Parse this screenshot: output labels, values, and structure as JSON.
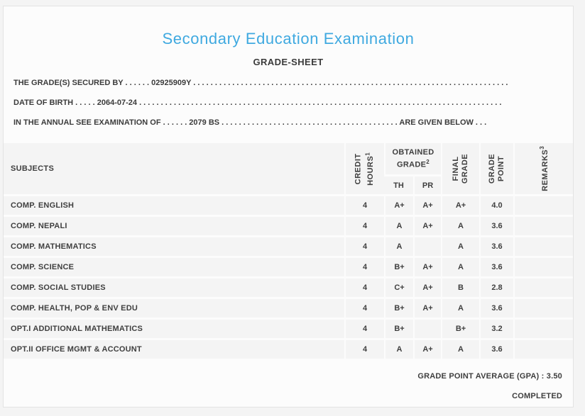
{
  "page": {
    "title": "Secondary Education Examination",
    "subtitle": "GRADE-SHEET"
  },
  "colors": {
    "title_blue": "#3FA9E0",
    "text": "#3B3B3B",
    "cell_bg": "#F4F4F4",
    "card_bg": "#FCFCFC",
    "page_bg": "#F4F4F4"
  },
  "info_lines": [
    "THE GRADE(S) SECURED BY . . . . . . 02925909Y . . . . . . . . . . . . . . . . . . . . . . . . . . . . . . . . . . . . . . . . . . . . . . . . . . . . . . . . . . . . . . . . . . . . . . . . .",
    "DATE OF BIRTH . . . . . 2064-07-24 . . . . . . . . . . . . . . . . . . . . . . . . . . . . . . . . . . . . . . . . . . . . . . . . . . . . . . . . . . . . . . . . . . . . . . . . . . . . . . . . . . . .",
    "IN THE ANNUAL SEE EXAMINATION OF . . . . . . 2079 BS . . . . . . . . . . . . . . . . . . . . . . . . . . . . . . . . . . . . . . . . . ARE GIVEN BELOW . . ."
  ],
  "table": {
    "columns": {
      "subjects": "SUBJECTS",
      "credit_hours": {
        "lines": [
          "CREDIT",
          "HOURS"
        ],
        "sup": "1"
      },
      "obtained_grade": {
        "lines": [
          "OBTAINED",
          "GRADE"
        ],
        "sup": "2"
      },
      "th": "TH",
      "pr": "PR",
      "final_grade": {
        "lines": [
          "FINAL",
          "GRADE"
        ]
      },
      "grade_point": {
        "lines": [
          "GRADE",
          "POINT"
        ]
      },
      "remarks": {
        "text": "REMARKS",
        "sup": "3"
      }
    },
    "rows": [
      {
        "subject": "COMP. ENGLISH",
        "credit": "4",
        "th": "A+",
        "pr": "A+",
        "final": "A+",
        "gp": "4.0",
        "remarks": ""
      },
      {
        "subject": "COMP. NEPALI",
        "credit": "4",
        "th": "A",
        "pr": "A+",
        "final": "A",
        "gp": "3.6",
        "remarks": ""
      },
      {
        "subject": "COMP. MATHEMATICS",
        "credit": "4",
        "th": "A",
        "pr": "",
        "final": "A",
        "gp": "3.6",
        "remarks": ""
      },
      {
        "subject": "COMP. SCIENCE",
        "credit": "4",
        "th": "B+",
        "pr": "A+",
        "final": "A",
        "gp": "3.6",
        "remarks": ""
      },
      {
        "subject": "COMP. SOCIAL STUDIES",
        "credit": "4",
        "th": "C+",
        "pr": "A+",
        "final": "B",
        "gp": "2.8",
        "remarks": ""
      },
      {
        "subject": "COMP. HEALTH, POP & ENV EDU",
        "credit": "4",
        "th": "B+",
        "pr": "A+",
        "final": "A",
        "gp": "3.6",
        "remarks": ""
      },
      {
        "subject": "OPT.I ADDITIONAL MATHEMATICS",
        "credit": "4",
        "th": "B+",
        "pr": "",
        "final": "B+",
        "gp": "3.2",
        "remarks": ""
      },
      {
        "subject": "OPT.II OFFICE MGMT & ACCOUNT",
        "credit": "4",
        "th": "A",
        "pr": "A+",
        "final": "A",
        "gp": "3.6",
        "remarks": ""
      }
    ]
  },
  "footer": {
    "gpa_label": "GRADE POINT AVERAGE (GPA) :",
    "gpa_value": "3.50",
    "status": "COMPLETED"
  }
}
